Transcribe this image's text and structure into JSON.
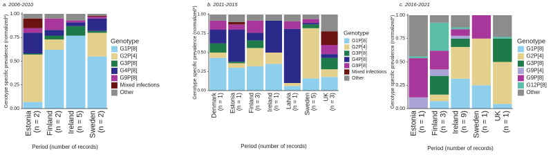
{
  "chart_data": [
    {
      "type": "stacked-bar",
      "title": "a. 2006-2010",
      "y_label": "Genotype specific prevalence (normalized*)",
      "x_label": "Period (number of records)",
      "legend_title": "Genotype",
      "categories": [
        "Estonia\n(n = 2)",
        "Finland\n(n = 2)",
        "Ireland\n(n = 5)",
        "Sweden\n(n = 2)"
      ],
      "ylim": [
        0,
        1
      ],
      "yticks": [
        {
          "value": 0,
          "label": "0.00"
        },
        {
          "value": 0.25,
          "label": "0.25"
        },
        {
          "value": 0.5,
          "label": "0.50"
        },
        {
          "value": 0.75,
          "label": "0.75"
        },
        {
          "value": 1,
          "label": "1.00"
        }
      ],
      "series": [
        {
          "name": "G1P[8]",
          "color": "#8ecfee",
          "values": [
            0.07,
            0.62,
            0.77,
            0.55
          ]
        },
        {
          "name": "G2P[4]",
          "color": "#e2d08c",
          "values": [
            0.5,
            0.11,
            0,
            0.25
          ]
        },
        {
          "name": "G3P[8]",
          "color": "#1e7a48",
          "values": [
            0.01,
            0.04,
            0.1,
            0.02
          ]
        },
        {
          "name": "G4P[8]",
          "color": "#2b2a8a",
          "values": [
            0.22,
            0.06,
            0.04,
            0.13
          ]
        },
        {
          "name": "G9P[8]",
          "color": "#a8379b",
          "values": [
            0.05,
            0.12,
            0.02,
            0.02
          ]
        },
        {
          "name": "Mixed infections",
          "color": "#6b1313",
          "values": [
            0.1,
            0,
            0,
            0.01
          ]
        },
        {
          "name": "Other",
          "color": "#8c8c8c",
          "values": [
            0.05,
            0.05,
            0.07,
            0.02
          ]
        }
      ]
    },
    {
      "type": "stacked-bar",
      "title": "b. 2011-2015",
      "y_label": "Genotype specific prevalence (normalized*)",
      "x_label": "Period (number of records)",
      "legend_title": "Genotype",
      "categories": [
        "Denmark\n(n = 1)",
        "Estonia\n(n = 1)",
        "Finland\n(n = 3)",
        "Ireland\n(n = 1)",
        "Latvia\n(n = 1)",
        "Sweden\n(n = 5)",
        "UK\n(n = 3)"
      ],
      "ylim": [
        0,
        1
      ],
      "yticks": [
        {
          "value": 0,
          "label": "0.00"
        },
        {
          "value": 0.25,
          "label": "0.25"
        },
        {
          "value": 0.5,
          "label": "0.50"
        },
        {
          "value": 0.75,
          "label": "0.75"
        },
        {
          "value": 1,
          "label": "1.00"
        }
      ],
      "series": [
        {
          "name": "G1P[8]",
          "color": "#8ecfee",
          "values": [
            0.43,
            0.3,
            0.32,
            0.35,
            0.06,
            0.16,
            0.18
          ]
        },
        {
          "name": "G2P[4]",
          "color": "#e2d08c",
          "values": [
            0.07,
            0.06,
            0.24,
            0.15,
            0.04,
            0.66,
            0.1
          ]
        },
        {
          "name": "G3P[8]",
          "color": "#1e7a48",
          "values": [
            0.12,
            0.02,
            0.1,
            0,
            0,
            0.05,
            0.15
          ]
        },
        {
          "name": "G4P[8]",
          "color": "#2b2a8a",
          "values": [
            0.18,
            0.42,
            0.1,
            0.42,
            0.71,
            0.02,
            0.05
          ]
        },
        {
          "name": "G9P[8]",
          "color": "#a8379b",
          "values": [
            0.12,
            0.07,
            0.16,
            0,
            0.1,
            0.05,
            0.12
          ]
        },
        {
          "name": "Mixed infections",
          "color": "#6b1313",
          "values": [
            0,
            0.03,
            0,
            0,
            0,
            0,
            0.18
          ]
        },
        {
          "name": "Other",
          "color": "#8c8c8c",
          "values": [
            0.08,
            0.1,
            0.08,
            0.08,
            0.09,
            0.06,
            0.22
          ]
        }
      ]
    },
    {
      "type": "stacked-bar",
      "title": "c. 2016-2021",
      "y_label": "Genotype specific prevalence (normalized*)",
      "x_label": "Period (number of records)",
      "legend_title": "Genotype",
      "categories": [
        "Estonia\n(n = 1)",
        "Finland\n(n = 3)",
        "Ireland\n(n = 9)",
        "Sweden\n(n = 1)",
        "UK\n(n = 1)"
      ],
      "ylim": [
        0,
        1
      ],
      "yticks": [
        {
          "value": 0,
          "label": "0.00"
        },
        {
          "value": 0.25,
          "label": "0.25"
        },
        {
          "value": 0.5,
          "label": "0.50"
        },
        {
          "value": 0.75,
          "label": "0.75"
        },
        {
          "value": 1,
          "label": "1.00"
        }
      ],
      "series": [
        {
          "name": "G1P[8]",
          "color": "#8ecfee",
          "values": [
            0,
            0.08,
            0.32,
            0.25,
            0.05
          ]
        },
        {
          "name": "G2P[4]",
          "color": "#e2d08c",
          "values": [
            0,
            0.07,
            0.34,
            0.5,
            0.45
          ]
        },
        {
          "name": "G3P[8]",
          "color": "#1e7a48",
          "values": [
            0,
            0.2,
            0.09,
            0,
            0.25
          ]
        },
        {
          "name": "G9P[4]",
          "color": "#a9a3d6",
          "values": [
            0.12,
            0.07,
            0.03,
            0,
            0
          ]
        },
        {
          "name": "G9P[8]",
          "color": "#a8379b",
          "values": [
            0.42,
            0.2,
            0.07,
            0.25,
            0
          ]
        },
        {
          "name": "G12P[8]",
          "color": "#5bbfa8",
          "values": [
            0.02,
            0.3,
            0.02,
            0,
            0.02
          ]
        },
        {
          "name": "Other",
          "color": "#8c8c8c",
          "values": [
            0.44,
            0.08,
            0.13,
            0,
            0.23
          ]
        }
      ]
    }
  ]
}
